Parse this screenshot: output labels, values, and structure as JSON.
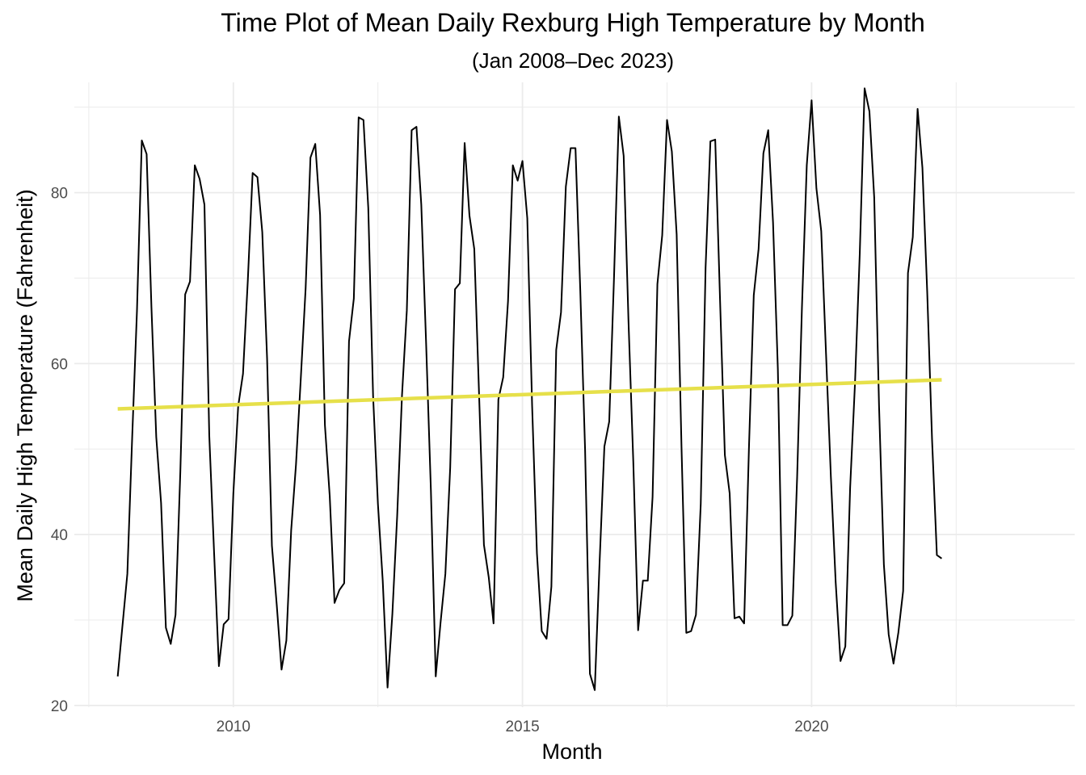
{
  "chart_data": {
    "type": "line",
    "title": "Time Plot of Mean Daily Rexburg High Temperature by Month",
    "subtitle": "(Jan 2008–Dec 2023)",
    "xlabel": "Month",
    "ylabel": "Mean Daily High Temperature (Fahrenheit)",
    "xlim": [
      2007.25,
      2024.55
    ],
    "ylim": [
      19.8,
      92.9
    ],
    "x_ticks": [
      2010,
      2015,
      2020
    ],
    "x_tick_labels": [
      "2010",
      "2015",
      "2020"
    ],
    "y_ticks": [
      20,
      40,
      60,
      80
    ],
    "y_tick_labels": [
      "20",
      "40",
      "60",
      "80"
    ],
    "grid": true,
    "legend": "none",
    "colors": {
      "series": "#000000",
      "trend": "#e6e04a",
      "grid": "#ebebeb"
    },
    "x_start": "2008-01",
    "series": [
      {
        "values": [
          23.4,
          29.4,
          35.4,
          51.3,
          66.2,
          86.1,
          84.5,
          66.6,
          51.4,
          43.7,
          29.1,
          27.2,
          30.6,
          47.4,
          68.1,
          69.6,
          83.2,
          81.6,
          78.6,
          51.6,
          37.9,
          24.6,
          29.5,
          30.1,
          44.8,
          55.0,
          58.8,
          69.7,
          82.3,
          81.8,
          75.4,
          60.6,
          38.7,
          31.8,
          24.2,
          27.6,
          40.5,
          48.2,
          58.3,
          68.8,
          84.1,
          85.7,
          77.4,
          52.8,
          44.5,
          32.0,
          33.5,
          34.3,
          62.6,
          67.6,
          88.8,
          88.5,
          78.2,
          56.2,
          43.6,
          34.6,
          22.1,
          30.7,
          42.2,
          56.3,
          66.2,
          87.3,
          87.7,
          78.6,
          62.4,
          45.1,
          23.4,
          29.7,
          35.4,
          47.8,
          68.7,
          69.4,
          85.8,
          77.3,
          73.4,
          56.3,
          38.8,
          35.0,
          29.6,
          55.8,
          58.4,
          67.3,
          83.2,
          81.4,
          83.7,
          77.0,
          55.1,
          37.8,
          28.7,
          27.8,
          33.9,
          61.6,
          66.0,
          80.7,
          85.2,
          85.2,
          68.5,
          49.8,
          23.7,
          21.8,
          36.7,
          50.3,
          53.2,
          70.1,
          88.9,
          84.3,
          65.0,
          48.5,
          28.8,
          34.6,
          34.6,
          44.4,
          69.3,
          75.0,
          88.5,
          84.8,
          75.1,
          50.3,
          28.5,
          28.7,
          30.6,
          43.6,
          71.2,
          86.0,
          86.2,
          67.5,
          49.3,
          44.8,
          30.2,
          30.4,
          29.6,
          50.1,
          68.0,
          73.4,
          84.6,
          87.3,
          76.5,
          59.3,
          29.4,
          29.4,
          30.5,
          46.7,
          66.6,
          83.2,
          90.8,
          80.5,
          75.5,
          61.1,
          46.8,
          34.4,
          25.2,
          26.9,
          45.5,
          57.6,
          72.9,
          92.2,
          89.5,
          79.4,
          55.0,
          36.5,
          28.3,
          24.9,
          28.5,
          33.4,
          70.6,
          74.8,
          89.8,
          82.9,
          68.3,
          51.1,
          37.6,
          37.2
        ]
      }
    ],
    "trend": {
      "start": 54.7,
      "end": 58.1
    }
  }
}
